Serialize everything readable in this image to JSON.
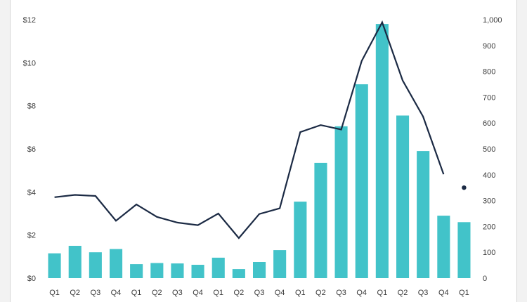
{
  "chart_data": {
    "type": "bar",
    "title": "",
    "xlabel": "",
    "ylabel": "",
    "categories": [
      "Q1",
      "Q2",
      "Q3",
      "Q4",
      "Q1",
      "Q2",
      "Q3",
      "Q4",
      "Q1",
      "Q2",
      "Q3",
      "Q4",
      "Q1",
      "Q2",
      "Q3",
      "Q4",
      "Q1",
      "Q2",
      "Q3",
      "Q4",
      "Q1"
    ],
    "y_left": {
      "ylim": [
        0,
        12
      ],
      "ticks": [
        0,
        2,
        4,
        6,
        8,
        10,
        12
      ],
      "tick_labels": [
        "$0",
        "$2",
        "$4",
        "$6",
        "$8",
        "$10",
        "$12"
      ]
    },
    "y_right": {
      "ylim": [
        0,
        1000
      ],
      "ticks": [
        0,
        100,
        200,
        300,
        400,
        500,
        600,
        700,
        800,
        900,
        1000
      ],
      "tick_labels": [
        "0",
        "100",
        "200",
        "300",
        "400",
        "500",
        "600",
        "700",
        "800",
        "900",
        "1,000"
      ]
    },
    "series": [
      {
        "type": "bar",
        "axis": "left",
        "color": "#42c3c9",
        "values": [
          1.15,
          1.5,
          1.2,
          1.35,
          0.65,
          0.7,
          0.68,
          0.62,
          0.95,
          0.42,
          0.75,
          1.3,
          3.55,
          5.35,
          7.05,
          9.0,
          11.8,
          7.55,
          5.9,
          2.9,
          2.6
        ]
      },
      {
        "type": "line",
        "axis": "right",
        "color": "#1b2a44",
        "values": [
          313,
          322,
          318,
          222,
          285,
          237,
          215,
          205,
          250,
          155,
          248,
          270,
          565,
          592,
          575,
          840,
          990,
          765,
          625,
          402,
          null
        ]
      },
      {
        "type": "point",
        "axis": "right",
        "color": "#1b2a44",
        "points": [
          {
            "index": 20,
            "value": 350
          }
        ]
      }
    ],
    "grid": false,
    "legend": "none"
  }
}
